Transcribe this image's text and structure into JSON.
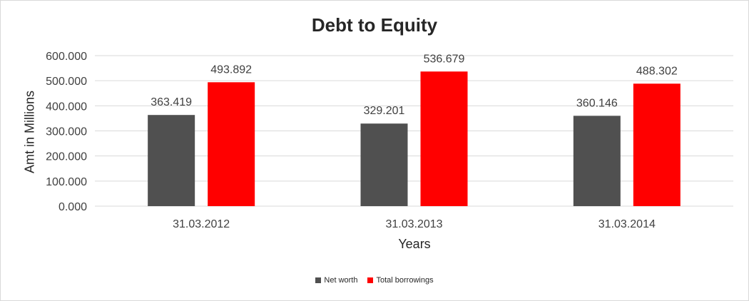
{
  "chart_data": {
    "type": "bar",
    "title": "Debt to Equity",
    "xlabel": "Years",
    "ylabel": "Amt in Millions",
    "categories": [
      "31.03.2012",
      "31.03.2013",
      "31.03.2014"
    ],
    "series": [
      {
        "name": "Net worth",
        "color": "#505050",
        "values": [
          363.419,
          329.201,
          360.146
        ],
        "labels": [
          "363.419",
          "329.201",
          "360.146"
        ]
      },
      {
        "name": "Total borrowings",
        "color": "#ff0000",
        "values": [
          493.892,
          536.679,
          488.302
        ],
        "labels": [
          "493.892",
          "536.679",
          "488.302"
        ]
      }
    ],
    "ylim": [
      0,
      600
    ],
    "yticks": [
      0,
      100,
      200,
      300,
      400,
      500,
      600
    ],
    "ytick_labels": [
      "0.000",
      "100.000",
      "200.000",
      "300.000",
      "400.000",
      "500.000",
      "600.000"
    ],
    "grid": true,
    "legend_position": "bottom"
  }
}
